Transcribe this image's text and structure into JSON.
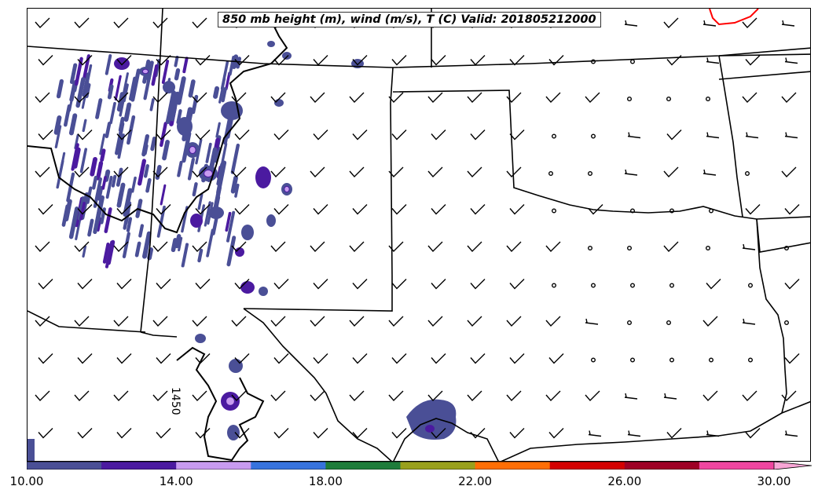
{
  "title": "850 mb height (m), wind (m/s), T (C) Valid: 201805212000",
  "contour_label": "1450",
  "colorbar": {
    "colors": [
      "#4a4f96",
      "#4b1aa0",
      "#c89bf0",
      "#3773dd",
      "#1e7c3a",
      "#99a01c",
      "#ff6e05",
      "#d40000",
      "#9e0025",
      "#f046a0",
      "#f8a6d6"
    ],
    "tick_labels": [
      "10.00",
      "14.00",
      "18.00",
      "22.00",
      "26.00",
      "30.00"
    ],
    "tick_values": [
      10,
      14,
      18,
      22,
      26,
      30
    ],
    "range": [
      10,
      31
    ],
    "extend": "max"
  },
  "colors": {
    "state_borders": "#000000",
    "contour": "#000000",
    "warm_contour": "#ff0000",
    "shading_main": "#4a4f96",
    "shading_purple": "#4b1aa0",
    "shading_lavender": "#c89bf0"
  },
  "wind_barbs": {
    "barb_type": "wind barbs",
    "calm_marker": "circle"
  }
}
